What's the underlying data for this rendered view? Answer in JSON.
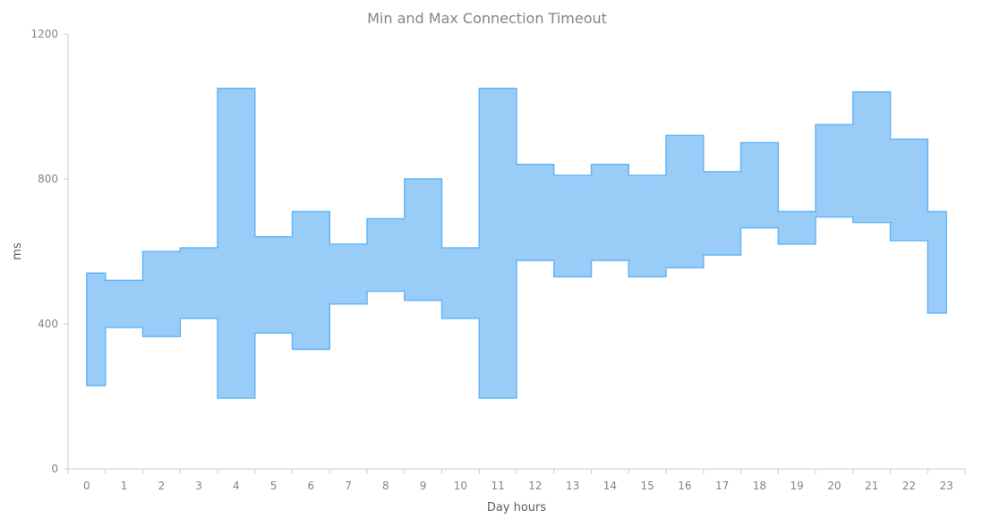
{
  "chart_data": {
    "type": "area",
    "subtype": "step-range",
    "title": "Min and Max Connection Timeout",
    "xlabel": "Day hours",
    "ylabel": "ms",
    "categories": [
      "0",
      "1",
      "2",
      "3",
      "4",
      "5",
      "6",
      "7",
      "8",
      "9",
      "10",
      "11",
      "12",
      "13",
      "14",
      "15",
      "16",
      "17",
      "18",
      "19",
      "20",
      "21",
      "22",
      "23"
    ],
    "series": [
      {
        "low": [
          230,
          390,
          365,
          415,
          195,
          375,
          330,
          455,
          490,
          465,
          415,
          195,
          575,
          530,
          575,
          530,
          555,
          590,
          665,
          620,
          695,
          680,
          630,
          430
        ],
        "high": [
          540,
          520,
          600,
          610,
          1050,
          640,
          710,
          620,
          690,
          800,
          610,
          1050,
          840,
          810,
          840,
          810,
          920,
          820,
          900,
          710,
          950,
          1040,
          910,
          710
        ]
      }
    ],
    "ylim": [
      0,
      1200
    ],
    "yticks": [
      0,
      400,
      800,
      1200
    ],
    "grid": false,
    "colors": {
      "fill": "#99cdf8",
      "stroke": "#64b5f6"
    }
  }
}
